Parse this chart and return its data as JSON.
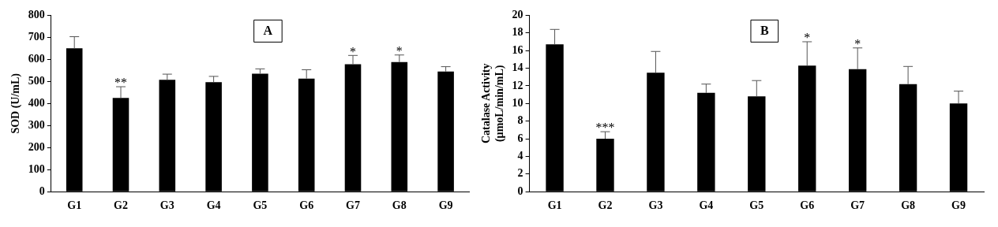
{
  "chart_data": [
    {
      "type": "bar",
      "title": "A",
      "ylabel": "SOD (U/mL)",
      "categories": [
        "G1",
        "G2",
        "G3",
        "G4",
        "G5",
        "G6",
        "G7",
        "G8",
        "G9"
      ],
      "values": [
        650,
        425,
        507,
        497,
        535,
        513,
        578,
        588,
        545
      ],
      "color": "#000000",
      "errors": [
        [
          650,
          703
        ],
        [
          425,
          476
        ],
        [
          507,
          533
        ],
        [
          497,
          523
        ],
        [
          535,
          557
        ],
        [
          513,
          553
        ],
        [
          578,
          618
        ],
        [
          588,
          620
        ],
        [
          545,
          567
        ]
      ],
      "ylim": [
        0,
        800
      ],
      "yticks": [
        0,
        100,
        200,
        300,
        400,
        500,
        600,
        700,
        800
      ],
      "grid": false,
      "legend": false,
      "annotations": [
        {
          "text": "**",
          "x": "G2",
          "y": 476
        },
        {
          "text": "*",
          "x": "G7",
          "y": 618
        },
        {
          "text": "*",
          "x": "G8",
          "y": 620
        }
      ]
    },
    {
      "type": "bar",
      "title": "B",
      "ylabel": "Catalase Activity\n(µmoL/min/mL)",
      "categories": [
        "G1",
        "G2",
        "G3",
        "G4",
        "G5",
        "G6",
        "G7",
        "G8",
        "G9"
      ],
      "values": [
        16.7,
        6.0,
        13.5,
        11.2,
        10.8,
        14.3,
        13.9,
        12.2,
        10.0
      ],
      "color": "#000000",
      "errors": [
        [
          16.7,
          18.4
        ],
        [
          6.0,
          6.8
        ],
        [
          13.5,
          15.9
        ],
        [
          11.2,
          12.2
        ],
        [
          10.8,
          12.6
        ],
        [
          14.3,
          17.0
        ],
        [
          13.9,
          16.3
        ],
        [
          12.2,
          14.2
        ],
        [
          10.0,
          11.4
        ]
      ],
      "ylim": [
        0,
        20
      ],
      "yticks": [
        0,
        2,
        4,
        6,
        8,
        10,
        12,
        14,
        16,
        18,
        20
      ],
      "grid": false,
      "legend": false,
      "annotations": [
        {
          "text": "***",
          "x": "G2",
          "y": 6.8
        },
        {
          "text": "*",
          "x": "G6",
          "y": 17.0
        },
        {
          "text": "*",
          "x": "G7",
          "y": 16.3
        }
      ]
    }
  ]
}
